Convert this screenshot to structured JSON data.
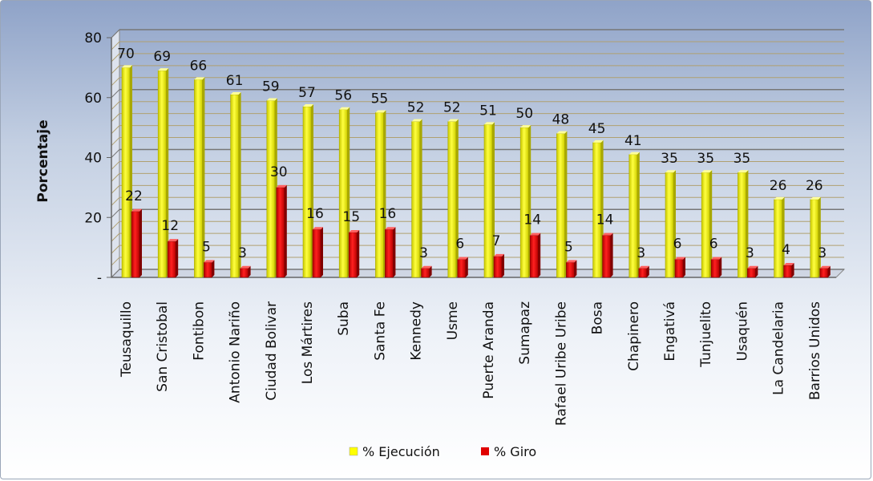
{
  "chart_data": {
    "type": "bar",
    "title": "",
    "xlabel": "",
    "ylabel": "Porcentaje",
    "ylim": [
      0,
      80
    ],
    "yticks": [
      "-",
      "20",
      "40",
      "60",
      "80"
    ],
    "grid": true,
    "legend_position": "bottom",
    "categories": [
      "Teusaquillo",
      "San Cristobal",
      "Fontibon",
      "Antonio Nariño",
      "Ciudad Bolivar",
      "Los Mártires",
      "Suba",
      "Santa Fe",
      "Kennedy",
      "Usme",
      "Puerte Aranda",
      "Sumapaz",
      "Rafael Uribe Uribe",
      "Bosa",
      "Chapinero",
      "Engativá",
      "Tunjuelito",
      "Usaquén",
      "La Candelaria",
      "Barrios Unidos"
    ],
    "series": [
      {
        "name": "% Ejecución",
        "color": "#ffff00",
        "values": [
          70,
          69,
          66,
          61,
          59,
          57,
          56,
          55,
          52,
          52,
          51,
          50,
          48,
          45,
          41,
          35,
          35,
          35,
          26,
          26
        ]
      },
      {
        "name": "% Giro",
        "color": "#e00000",
        "values": [
          22,
          12,
          5,
          3,
          30,
          16,
          15,
          16,
          3,
          6,
          7,
          14,
          5,
          14,
          3,
          6,
          6,
          3,
          4,
          3
        ]
      }
    ]
  }
}
